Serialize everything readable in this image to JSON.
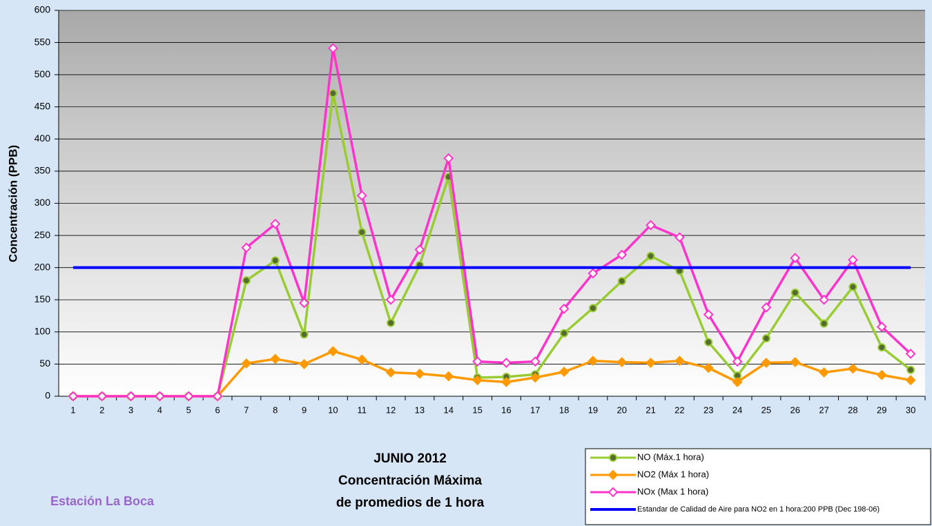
{
  "chart_data": {
    "type": "line",
    "title_lines": [
      "JUNIO 2012",
      "Concentración Máxima",
      "de promedios de 1 hora"
    ],
    "station": "Estación La Boca",
    "y_label": "Concentración  (PPB)",
    "categories": [
      "1",
      "2",
      "3",
      "4",
      "5",
      "6",
      "7",
      "8",
      "9",
      "10",
      "11",
      "12",
      "13",
      "14",
      "15",
      "16",
      "17",
      "18",
      "19",
      "20",
      "21",
      "22",
      "23",
      "24",
      "25",
      "26",
      "27",
      "28",
      "29",
      "30"
    ],
    "series": [
      {
        "name": "NO (Máx.1 hora)",
        "color": "#99cc33",
        "marker": "circle",
        "values": [
          0,
          0,
          0,
          0,
          0,
          0,
          180,
          211,
          96,
          471,
          255,
          114,
          204,
          341,
          29,
          30,
          34,
          98,
          137,
          179,
          218,
          195,
          84,
          32,
          90,
          161,
          113,
          170,
          76,
          41
        ]
      },
      {
        "name": "NO2 (Máx 1 hora)",
        "color": "#ff9900",
        "marker": "diamond",
        "values": [
          0,
          0,
          0,
          0,
          0,
          0,
          51,
          58,
          50,
          70,
          57,
          37,
          35,
          31,
          25,
          22,
          29,
          38,
          55,
          53,
          52,
          55,
          44,
          22,
          52,
          53,
          37,
          43,
          33,
          25
        ]
      },
      {
        "name": "NOx (Max 1 hora)",
        "color": "#ff33cc",
        "marker": "diamond-open",
        "values": [
          0,
          0,
          0,
          0,
          0,
          0,
          231,
          268,
          145,
          541,
          312,
          150,
          228,
          370,
          54,
          52,
          54,
          136,
          191,
          220,
          266,
          247,
          127,
          54,
          138,
          215,
          150,
          212,
          108,
          66
        ]
      },
      {
        "name": "Estandar de Calidad de Aire para NO2 en 1 hora:200 PPB (Dec 198-06)",
        "color": "#0000ff",
        "marker": "none",
        "values": [
          200,
          200,
          200,
          200,
          200,
          200,
          200,
          200,
          200,
          200,
          200,
          200,
          200,
          200,
          200,
          200,
          200,
          200,
          200,
          200,
          200,
          200,
          200,
          200,
          200,
          200,
          200,
          200,
          200,
          200
        ]
      }
    ],
    "ylim": [
      0,
      600
    ],
    "yticks": [
      0,
      50,
      100,
      150,
      200,
      250,
      300,
      350,
      400,
      450,
      500,
      550,
      600
    ],
    "grid": true
  }
}
